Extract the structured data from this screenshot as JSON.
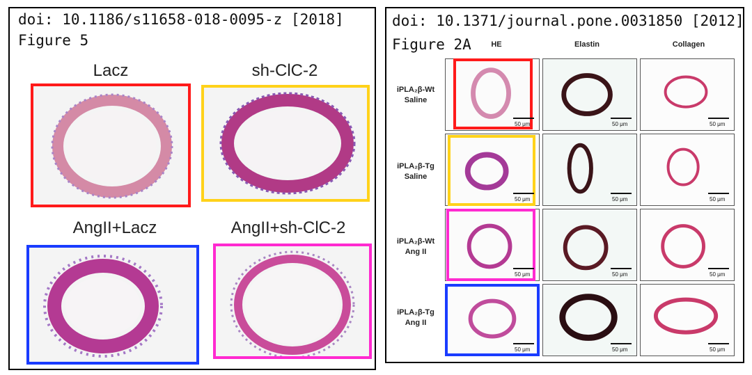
{
  "left": {
    "doi": "doi: 10.1186/s11658-018-0095-z [2018]",
    "figure": "Figure 5",
    "panels": [
      {
        "label": "Lacz",
        "highlight": "red"
      },
      {
        "label": "sh-ClC-2",
        "highlight": "yellow"
      },
      {
        "label": "AngII+Lacz",
        "highlight": "blue"
      },
      {
        "label": "AngII+sh-ClC-2",
        "highlight": "magenta"
      }
    ]
  },
  "right": {
    "doi": "doi: 10.1371/journal.pone.0031850 [2012]",
    "figure": "Figure 2A",
    "columns": [
      "HE",
      "Elastin",
      "Collagen"
    ],
    "rows": [
      {
        "line1": "iPLA₂β-Wt",
        "line2": "Saline",
        "highlight": "red"
      },
      {
        "line1": "iPLA₂β-Tg",
        "line2": "Saline",
        "highlight": "yellow"
      },
      {
        "line1": "iPLA₂β-Wt",
        "line2": "Ang II",
        "highlight": "magenta"
      },
      {
        "line1": "iPLA₂β-Tg",
        "line2": "Ang II",
        "highlight": "blue"
      }
    ],
    "scale": "50 μm"
  },
  "colors": {
    "red": "#ff1a1a",
    "yellow": "#ffd21a",
    "blue": "#1a3cff",
    "magenta": "#ff2ad0",
    "he_stain": "#c2448f",
    "elastin_stain": "#3a1418",
    "collagen_stain": "#c93a6a"
  }
}
